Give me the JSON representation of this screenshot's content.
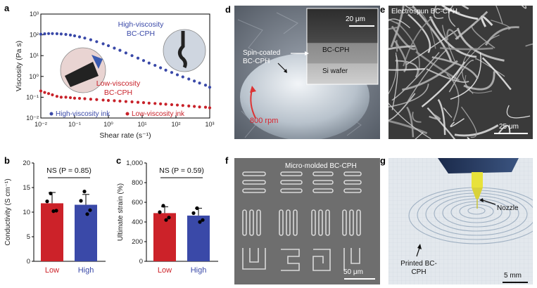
{
  "panels": {
    "a": {
      "letter": "a",
      "chart_data": {
        "type": "scatter",
        "title": "",
        "xlabel": "Shear rate (s⁻¹)",
        "ylabel": "Viscosity (Pa s)",
        "xscale": "log",
        "yscale": "log",
        "xlim": [
          0.01,
          1000
        ],
        "ylim": [
          0.01,
          1000
        ],
        "xticks": [
          "10⁻²",
          "10⁻¹",
          "10⁰",
          "10¹",
          "10²",
          "10³"
        ],
        "yticks": [
          "10⁻²",
          "10⁻¹",
          "10⁰",
          "10¹",
          "10²",
          "10³"
        ],
        "legend_position": "bottom",
        "series": [
          {
            "name": "High-viscosity ink",
            "color": "#3a49a8",
            "x": [
              0.01,
              0.013,
              0.017,
              0.022,
              0.03,
              0.04,
              0.055,
              0.075,
              0.1,
              0.14,
              0.2,
              0.3,
              0.45,
              0.7,
              1,
              1.5,
              2.2,
              3.3,
              5,
              7.5,
              11,
              16,
              24,
              35,
              50,
              75,
              110,
              160,
              240,
              350,
              500,
              750,
              1000
            ],
            "y": [
              108,
              112,
              115,
              115,
              113,
              110,
              105,
              98,
              90,
              80,
              70,
              58,
              47,
              37,
              30,
              23,
              18,
              13.5,
              10,
              7.6,
              5.8,
              4.4,
              3.4,
              2.6,
              2,
              1.55,
              1.2,
              0.95,
              0.75,
              0.6,
              0.48,
              0.38,
              0.3
            ]
          },
          {
            "name": "Low-viscosity ink",
            "color": "#c8222a",
            "x": [
              0.01,
              0.013,
              0.017,
              0.022,
              0.03,
              0.04,
              0.055,
              0.075,
              0.1,
              0.14,
              0.2,
              0.3,
              0.45,
              0.7,
              1,
              1.5,
              2.2,
              3.3,
              5,
              7.5,
              11,
              16,
              24,
              35,
              50,
              75,
              110,
              160,
              240,
              350,
              500,
              750,
              1000
            ],
            "y": [
              0.2,
              0.17,
              0.15,
              0.13,
              0.11,
              0.1,
              0.1,
              0.095,
              0.09,
              0.088,
              0.085,
              0.08,
              0.077,
              0.073,
              0.07,
              0.068,
              0.065,
              0.062,
              0.06,
              0.057,
              0.055,
              0.052,
              0.05,
              0.048,
              0.046,
              0.044,
              0.042,
              0.04,
              0.038,
              0.036,
              0.034,
              0.033,
              0.031
            ]
          }
        ],
        "annotations": [
          {
            "id": "high",
            "lines": [
              "High-viscosity",
              "BC-CPH"
            ],
            "color": "#3a49a8"
          },
          {
            "id": "low",
            "lines": [
              "Low-viscosity",
              "BC-CPH"
            ],
            "color": "#c8222a"
          }
        ]
      }
    },
    "b": {
      "letter": "b",
      "chart_data": {
        "type": "bar",
        "title": "",
        "xlabel": "",
        "ylabel": "Conductivity (S cm⁻¹)",
        "ylim": [
          0,
          20
        ],
        "yticks": [
          "0",
          "5",
          "10",
          "15",
          "20"
        ],
        "categories": [
          "Low",
          "High"
        ],
        "values": [
          11.8,
          11.5
        ],
        "errors": [
          2.2,
          2.1
        ],
        "bar_colors": [
          "#cc2229",
          "#3a49a8"
        ],
        "points": [
          [
            13.8,
            12.2,
            10.3,
            10.2
          ],
          [
            14.2,
            12.3,
            10.4,
            9.6
          ]
        ],
        "annotation": "NS (P = 0.85)"
      }
    },
    "c": {
      "letter": "c",
      "chart_data": {
        "type": "bar",
        "title": "",
        "xlabel": "",
        "ylabel": "Ultimate strain (%)",
        "ylim": [
          0,
          1000
        ],
        "yticks": [
          "0",
          "200",
          "400",
          "600",
          "800",
          "1,000"
        ],
        "categories": [
          "Low",
          "High"
        ],
        "values": [
          490,
          465
        ],
        "errors": [
          65,
          75
        ],
        "bar_colors": [
          "#cc2229",
          "#3a49a8"
        ],
        "points": [
          [
            565,
            500,
            445,
            420
          ],
          [
            540,
            490,
            420,
            400
          ]
        ],
        "annotation": "NS (P = 0.59)"
      }
    },
    "d": {
      "letter": "d",
      "label_spin": "Spin-coated BC-CPH",
      "label_rpm": "800 rpm",
      "inset": {
        "scale": "20 μm",
        "layer_top": "BC-CPH",
        "layer_bottom": "Si wafer"
      }
    },
    "e": {
      "letter": "e",
      "label": "Electrospun BC-CPH",
      "scale": "25 μm"
    },
    "f": {
      "letter": "f",
      "label": "Micro-molded BC-CPH",
      "scale": "50 μm"
    },
    "g": {
      "letter": "g",
      "label_nozzle": "Nozzle",
      "label_printed": "Printed BC-CPH",
      "scale": "5 mm"
    }
  }
}
